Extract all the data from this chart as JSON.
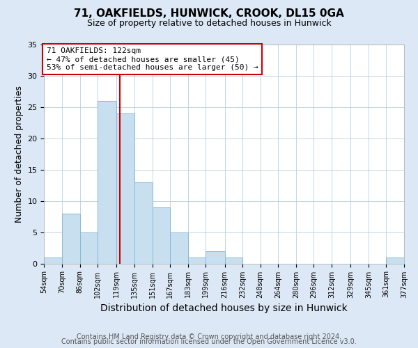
{
  "title": "71, OAKFIELDS, HUNWICK, CROOK, DL15 0GA",
  "subtitle": "Size of property relative to detached houses in Hunwick",
  "xlabel": "Distribution of detached houses by size in Hunwick",
  "ylabel": "Number of detached properties",
  "bin_edges": [
    54,
    70,
    86,
    102,
    119,
    135,
    151,
    167,
    183,
    199,
    216,
    232,
    248,
    264,
    280,
    296,
    312,
    329,
    345,
    361,
    377
  ],
  "bin_labels": [
    "54sqm",
    "70sqm",
    "86sqm",
    "102sqm",
    "119sqm",
    "135sqm",
    "151sqm",
    "167sqm",
    "183sqm",
    "199sqm",
    "216sqm",
    "232sqm",
    "248sqm",
    "264sqm",
    "280sqm",
    "296sqm",
    "312sqm",
    "329sqm",
    "345sqm",
    "361sqm",
    "377sqm"
  ],
  "counts": [
    1,
    8,
    5,
    26,
    24,
    13,
    9,
    5,
    1,
    2,
    1,
    0,
    0,
    0,
    0,
    0,
    0,
    0,
    0,
    1
  ],
  "bar_color": "#c8dff0",
  "bar_edge_color": "#85b8d8",
  "property_line_x": 122,
  "property_line_color": "#cc0000",
  "annotation_text": "71 OAKFIELDS: 122sqm\n← 47% of detached houses are smaller (45)\n53% of semi-detached houses are larger (50) →",
  "annotation_box_facecolor": "#ffffff",
  "annotation_box_edgecolor": "#cc0000",
  "ylim": [
    0,
    35
  ],
  "yticks": [
    0,
    5,
    10,
    15,
    20,
    25,
    30,
    35
  ],
  "footer_line1": "Contains HM Land Registry data © Crown copyright and database right 2024.",
  "footer_line2": "Contains public sector information licensed under the Open Government Licence v3.0.",
  "fig_facecolor": "#dce8f5",
  "plot_facecolor": "#ffffff",
  "grid_color": "#b8cfe0",
  "title_fontsize": 11,
  "subtitle_fontsize": 9,
  "axis_label_fontsize": 9,
  "tick_fontsize": 7,
  "annotation_fontsize": 8,
  "footer_fontsize": 7
}
